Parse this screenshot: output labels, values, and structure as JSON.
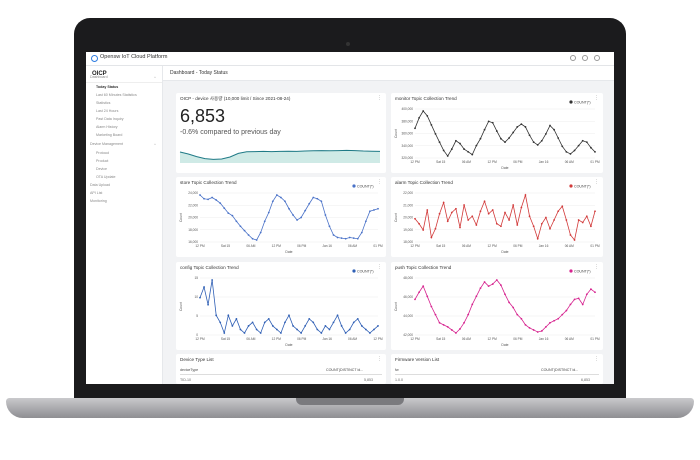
{
  "app": {
    "brand": "Opensw IoT Cloud Platform",
    "title": "OICP"
  },
  "breadcrumb": "Dashboard - Today Status",
  "sidebar": {
    "items": [
      {
        "label": "Dashboard",
        "active": false,
        "chev": "^"
      },
      {
        "label": "Today Status",
        "active": true
      },
      {
        "label": "Last 60 Minutes Statistics",
        "active": false
      },
      {
        "label": "Statistics",
        "active": false
      },
      {
        "label": "Last 24 Hours",
        "active": false
      },
      {
        "label": "Past Data Inquiry",
        "active": false
      },
      {
        "label": "Alarm History",
        "active": false
      },
      {
        "label": "Marketing Board",
        "active": false
      },
      {
        "label": "Device Management",
        "active": false,
        "chev": "^"
      },
      {
        "label": "Protocol",
        "active": false
      },
      {
        "label": "Product",
        "active": false
      },
      {
        "label": "Device",
        "active": false
      },
      {
        "label": "OTA Update",
        "active": false
      },
      {
        "label": "Data Upload",
        "active": false
      },
      {
        "label": "API List",
        "active": false
      },
      {
        "label": "Monitoring",
        "active": false
      }
    ]
  },
  "kpi": {
    "title": "OICP - device 사용량 (10,000 limit / Since 2021-08-24)",
    "value": "6,853",
    "delta": "-0.6% compared to previous day",
    "sparkline": [
      0.55,
      0.45,
      0.32,
      0.22,
      0.18,
      0.2,
      0.3,
      0.48,
      0.56,
      0.57,
      0.58,
      0.57,
      0.58,
      0.59,
      0.58,
      0.6,
      0.61,
      0.62,
      0.61,
      0.62,
      0.63,
      0.62,
      0.6,
      0.59,
      0.58
    ]
  },
  "charts": [
    {
      "title": "monitor Topic Collection Trend",
      "legend": "COUNT(*)",
      "color": "#333333",
      "xlabel": "Date",
      "ylabel": "Count",
      "yticks": [
        "400,000",
        "380,000",
        "360,000",
        "340,000",
        "320,000"
      ],
      "xticks": [
        "12 PM",
        "Sat 15",
        "06 AM",
        "12 PM",
        "06 PM",
        "Jan 16",
        "06 AM",
        "01 PM"
      ],
      "values": [
        370,
        385,
        395,
        388,
        375,
        362,
        350,
        338,
        330,
        340,
        352,
        348,
        340,
        336,
        332,
        345,
        355,
        368,
        380,
        378,
        366,
        355,
        350,
        356,
        364,
        372,
        376,
        372,
        360,
        350,
        346,
        352,
        362,
        374,
        368,
        356,
        344,
        336,
        333,
        338,
        345,
        352,
        350,
        342,
        336
      ]
    },
    {
      "title": "store Topic Collection Trend",
      "legend": "COUNT(*)",
      "color": "#4a72c8",
      "xlabel": "Date",
      "ylabel": "Count",
      "yticks": [
        "24,000",
        "22,000",
        "20,000",
        "18,000",
        "16,000"
      ],
      "xticks": [
        "12 PM",
        "Sat 15",
        "06 AM",
        "12 PM",
        "06 PM",
        "Jan 16",
        "06 AM",
        "01 PM"
      ],
      "values": [
        232,
        226,
        225,
        228,
        224,
        219,
        211,
        203,
        199,
        190,
        182,
        175,
        168,
        162,
        160,
        172,
        190,
        204,
        222,
        232,
        228,
        222,
        210,
        200,
        192,
        196,
        207,
        218,
        228,
        226,
        222,
        200,
        182,
        168,
        164,
        163,
        162,
        164,
        163,
        162,
        172,
        190,
        206,
        208,
        210
      ]
    },
    {
      "title": "alarm Topic Collection Trend",
      "legend": "COUNT(*)",
      "color": "#d23a3a",
      "xlabel": "Date",
      "ylabel": "Count",
      "yticks": [
        "22,000",
        "21,000",
        "20,000",
        "19,000",
        "18,000"
      ],
      "xticks": [
        "12 PM",
        "Sat 15",
        "06 AM",
        "12 PM",
        "06 PM",
        "Jan 16",
        "06 AM",
        "01 PM"
      ],
      "values": [
        201,
        197,
        192,
        208,
        186,
        193,
        205,
        214,
        199,
        206,
        209,
        194,
        212,
        200,
        203,
        196,
        207,
        215,
        205,
        208,
        197,
        195,
        206,
        200,
        212,
        196,
        210,
        220,
        203,
        195,
        185,
        197,
        202,
        193,
        200,
        207,
        211,
        200,
        188,
        184,
        200,
        198,
        203,
        195,
        207
      ]
    },
    {
      "title": "config Topic Collection Trend",
      "legend": "COUNT(*)",
      "color": "#2f5fb5",
      "xlabel": "Date",
      "ylabel": "Count",
      "yticks": [
        "15",
        "10",
        "5",
        "0"
      ],
      "xticks": [
        "12 PM",
        "Sat 15",
        "06 AM",
        "12 PM",
        "06 PM",
        "Jan 16",
        "06 AM",
        "12 PM"
      ],
      "values": [
        10,
        13,
        8,
        15,
        5,
        3,
        0,
        5,
        2,
        4,
        1,
        0,
        2,
        3,
        1,
        0,
        3,
        4,
        2,
        1,
        0,
        3,
        5,
        2,
        1,
        0,
        2,
        4,
        3,
        1,
        0,
        2,
        1,
        3,
        5,
        2,
        0,
        1,
        3,
        4,
        2,
        1,
        0,
        1,
        2
      ]
    },
    {
      "title": "push Topic Collection Trend",
      "legend": "COUNT(*)",
      "color": "#d6238f",
      "xlabel": "Date",
      "ylabel": "Count",
      "yticks": [
        "48,000",
        "46,000",
        "44,000",
        "42,000"
      ],
      "xticks": [
        "12 PM",
        "Sat 15",
        "06 AM",
        "12 PM",
        "06 PM",
        "Jan 16",
        "06 AM",
        "01 PM"
      ],
      "values": [
        455,
        462,
        468,
        458,
        448,
        440,
        432,
        430,
        428,
        425,
        422,
        426,
        432,
        440,
        450,
        458,
        466,
        472,
        468,
        470,
        474,
        469,
        460,
        452,
        447,
        440,
        436,
        430,
        427,
        425,
        423,
        424,
        428,
        432,
        434,
        436,
        440,
        444,
        450,
        455,
        456,
        450,
        460,
        465,
        462
      ]
    }
  ],
  "tables": [
    {
      "title": "Device Type List",
      "col1": "deviceType",
      "col2": "COUNT(DISTINCT id...",
      "row1": [
        "TID-10",
        "5,853"
      ]
    },
    {
      "title": "Firmware Version List",
      "col1": "fw",
      "col2": "COUNT(DISTINCT id...",
      "row1": [
        "1.0.0",
        "6,853"
      ]
    }
  ]
}
